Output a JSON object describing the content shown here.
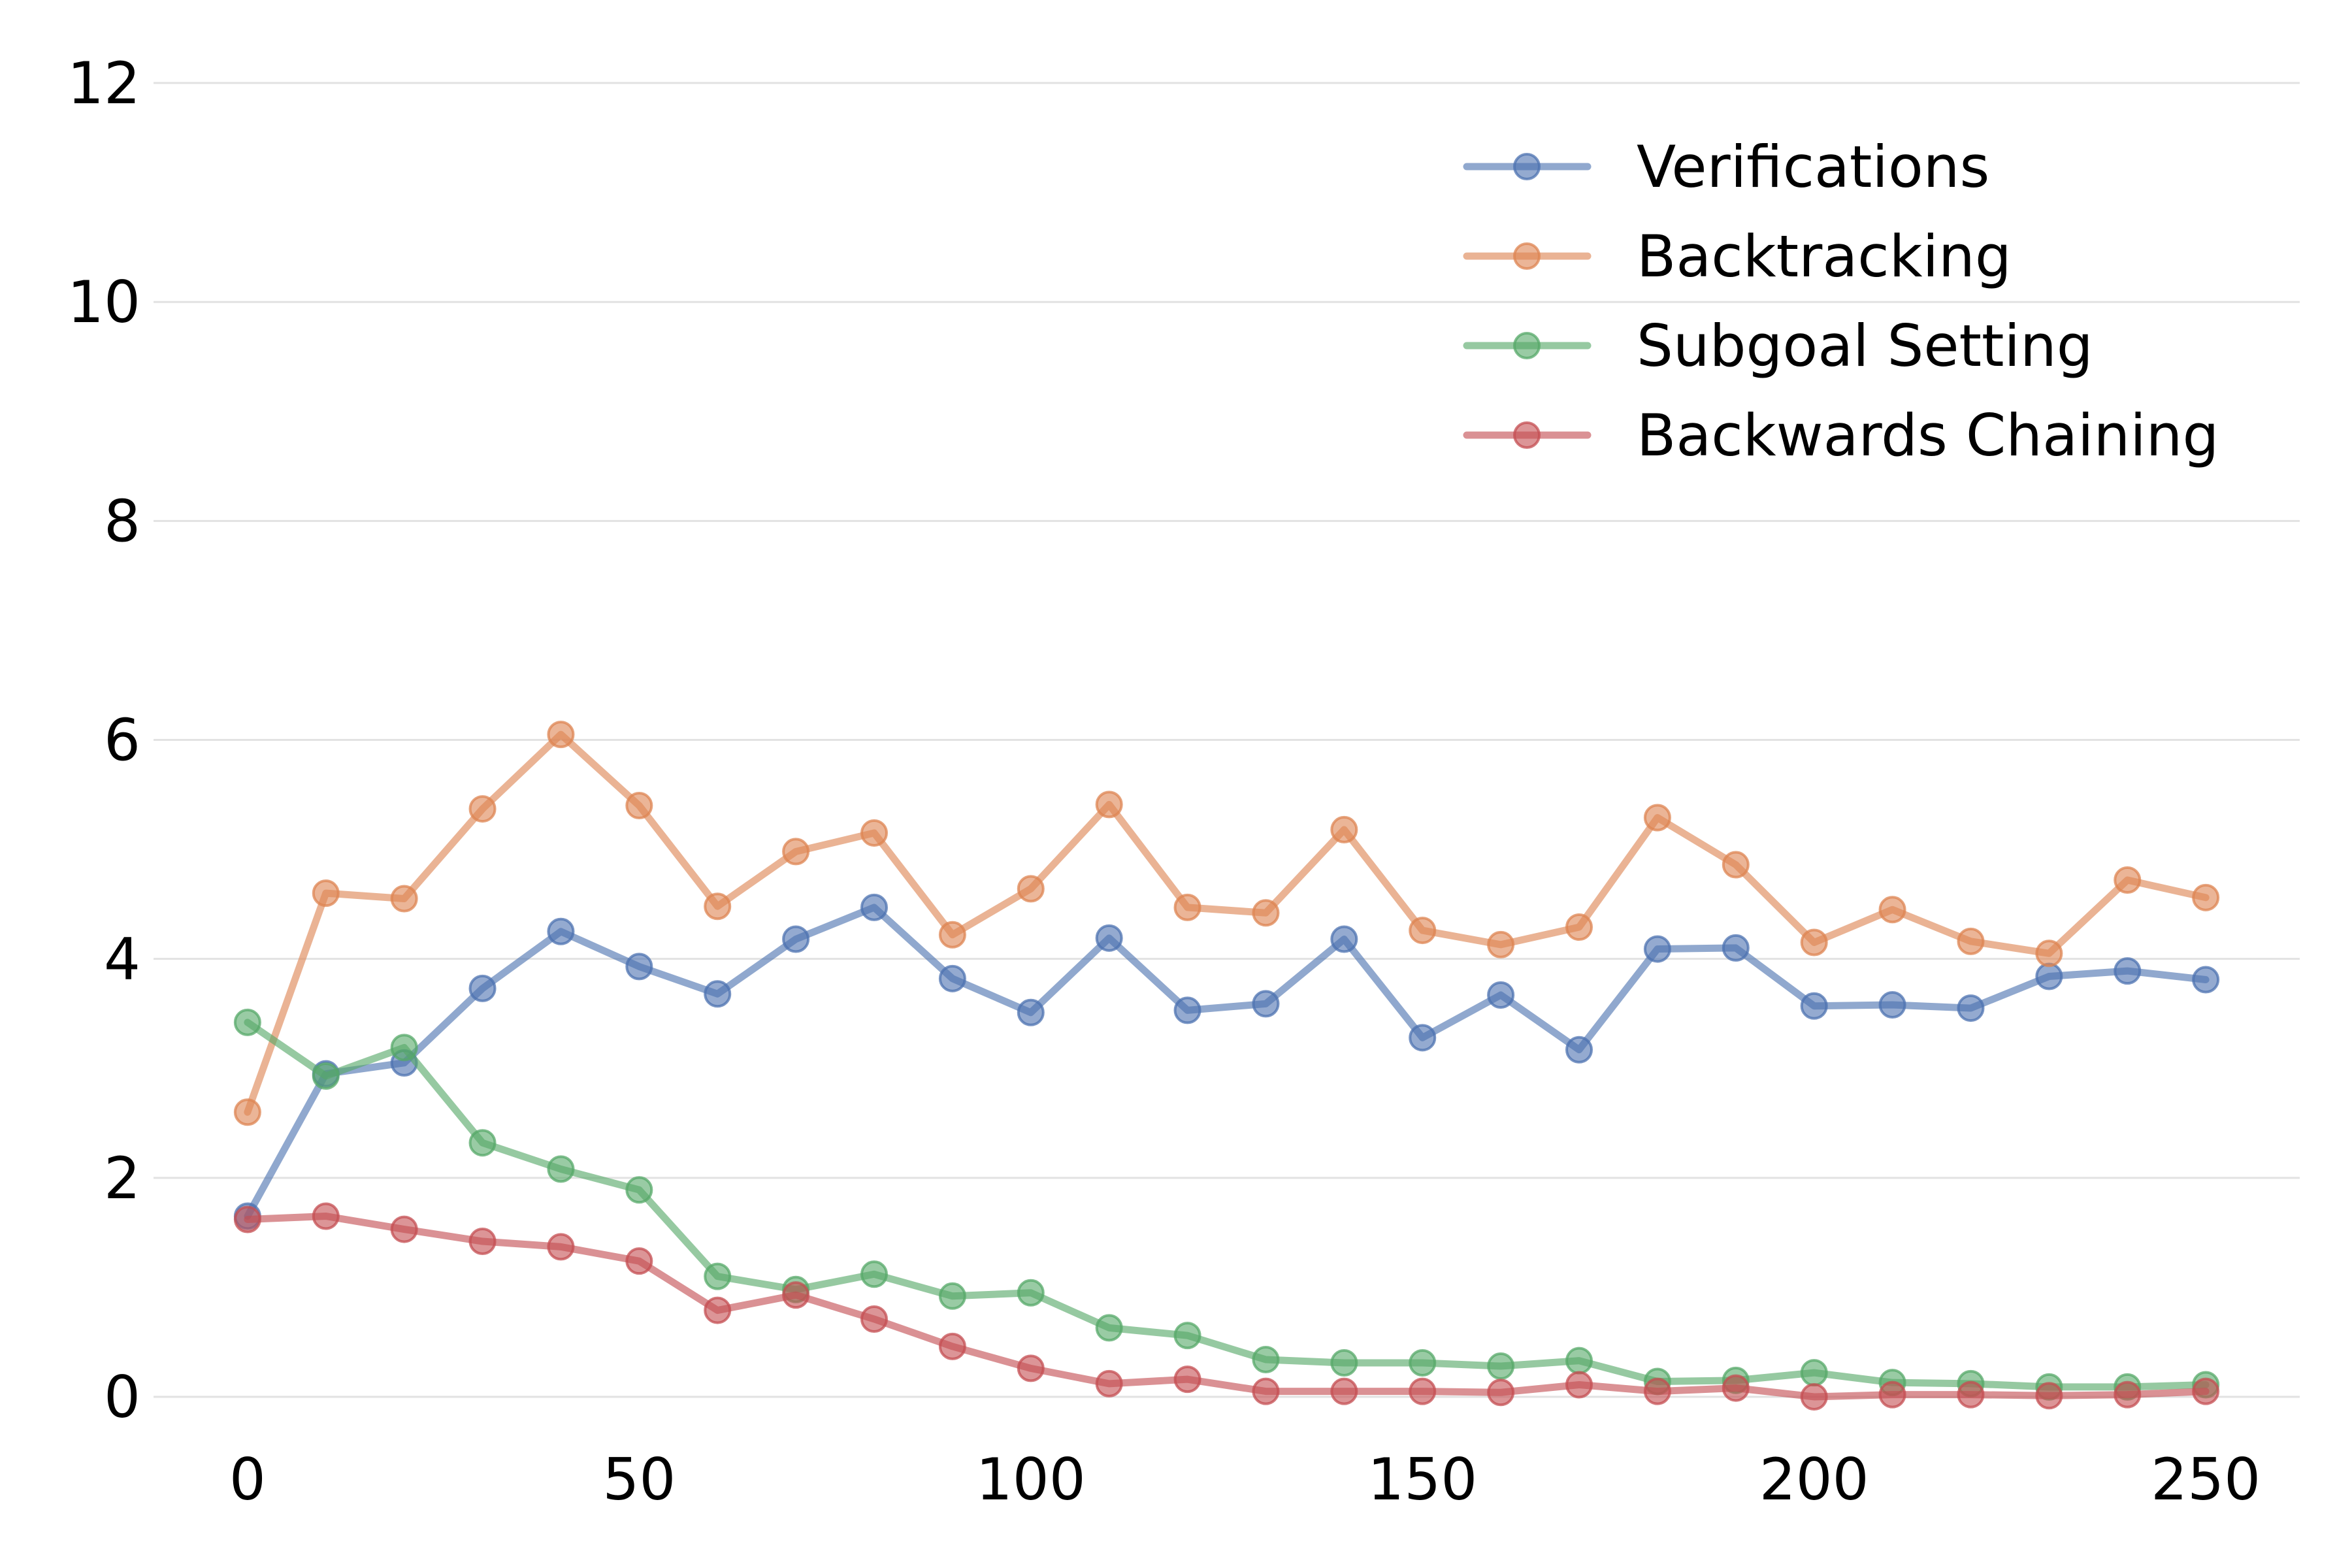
{
  "chart_data": {
    "type": "line",
    "title": "",
    "xlabel": "",
    "ylabel": "",
    "xlim": [
      -12,
      262
    ],
    "ylim": [
      -0.4,
      12.4
    ],
    "x_ticks": [
      0,
      50,
      100,
      150,
      200,
      250
    ],
    "y_ticks": [
      0,
      2,
      4,
      6,
      8,
      10,
      12
    ],
    "grid": "horizontal",
    "legend_position": "top-right",
    "x": [
      0,
      10,
      20,
      30,
      40,
      50,
      60,
      70,
      80,
      90,
      100,
      110,
      120,
      130,
      140,
      150,
      160,
      170,
      180,
      190,
      200,
      210,
      220,
      230,
      240,
      250
    ],
    "series": [
      {
        "name": "Verifications",
        "color": "#4c72b0",
        "values": [
          1.65,
          2.95,
          3.05,
          3.73,
          4.25,
          3.93,
          3.68,
          4.18,
          4.47,
          3.82,
          3.51,
          4.19,
          3.53,
          3.59,
          4.18,
          3.28,
          3.67,
          3.17,
          4.09,
          4.1,
          3.57,
          3.58,
          3.55,
          3.84,
          3.89,
          3.81
        ]
      },
      {
        "name": "Backtracking",
        "color": "#dd8452",
        "values": [
          2.6,
          4.6,
          4.55,
          5.37,
          6.05,
          5.4,
          4.48,
          4.98,
          5.15,
          4.22,
          4.64,
          5.41,
          4.47,
          4.42,
          5.18,
          4.26,
          4.13,
          4.29,
          5.29,
          4.86,
          4.15,
          4.45,
          4.16,
          4.05,
          4.72,
          4.56
        ]
      },
      {
        "name": "Subgoal Setting",
        "color": "#55a868",
        "values": [
          3.42,
          2.93,
          3.19,
          2.32,
          2.08,
          1.89,
          1.1,
          0.98,
          1.12,
          0.92,
          0.95,
          0.63,
          0.56,
          0.34,
          0.31,
          0.31,
          0.28,
          0.33,
          0.14,
          0.15,
          0.22,
          0.13,
          0.12,
          0.09,
          0.09,
          0.11
        ]
      },
      {
        "name": "Backwards Chaining",
        "color": "#c44e52",
        "values": [
          1.62,
          1.65,
          1.53,
          1.42,
          1.37,
          1.24,
          0.79,
          0.93,
          0.71,
          0.46,
          0.26,
          0.12,
          0.16,
          0.05,
          0.05,
          0.05,
          0.04,
          0.11,
          0.05,
          0.08,
          0.0,
          0.02,
          0.02,
          0.01,
          0.02,
          0.05
        ]
      }
    ]
  }
}
